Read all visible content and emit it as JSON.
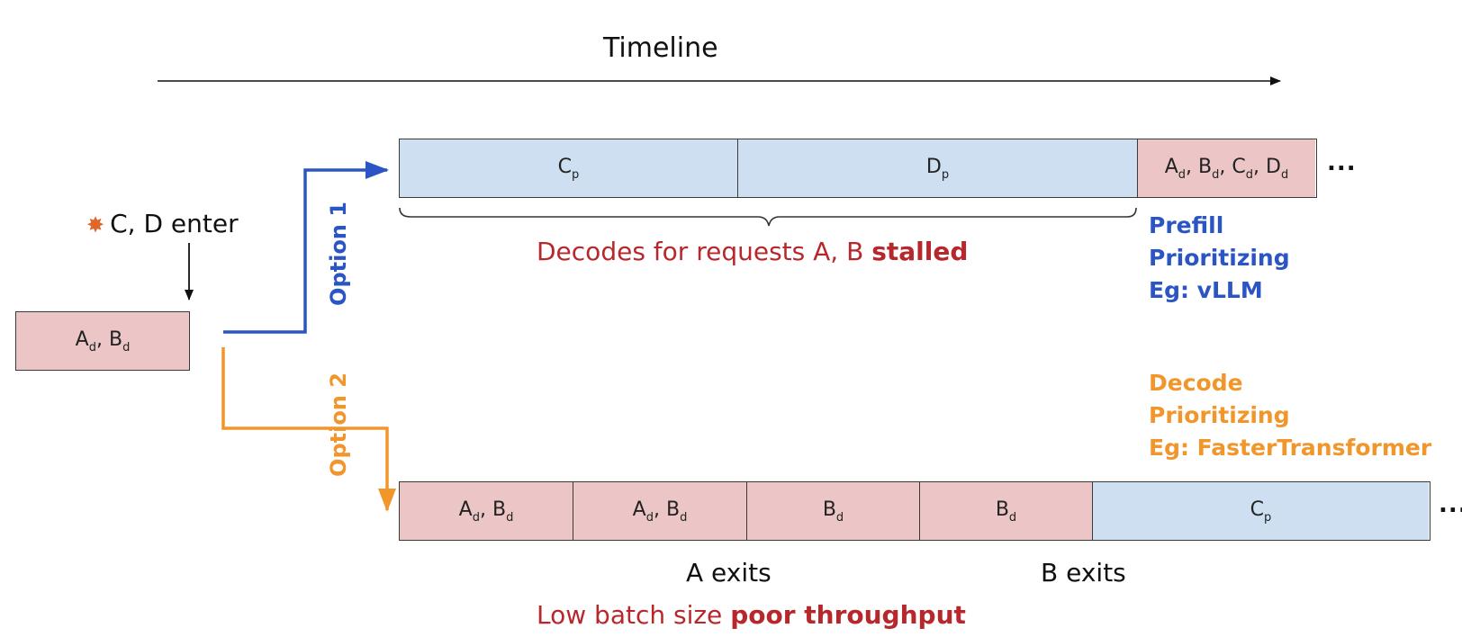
{
  "timeline": {
    "label": "Timeline"
  },
  "event": {
    "burst_icon": "collision-icon",
    "label": "C, D enter"
  },
  "start_box": {
    "main": [
      "A",
      "B"
    ],
    "subs": [
      "d",
      "d"
    ]
  },
  "option1": {
    "label": "Option 1",
    "color": "#2b54c4",
    "cells": [
      {
        "items": [
          [
            "C",
            "p"
          ]
        ]
      },
      {
        "items": [
          [
            "D",
            "p"
          ]
        ]
      },
      {
        "items": [
          [
            "A",
            "d"
          ],
          [
            "B",
            "d"
          ],
          [
            "C",
            "d"
          ],
          [
            "D",
            "d"
          ]
        ]
      }
    ],
    "stall_note": {
      "prefix": "Decodes for requests A, B ",
      "bold": "stalled"
    },
    "strategy": {
      "line1": "Prefill",
      "line2": "Prioritizing",
      "line3": "Eg: vLLM"
    },
    "ellipsis": "..."
  },
  "option2": {
    "label": "Option 2",
    "color": "#f1962b",
    "cells": [
      {
        "items": [
          [
            "A",
            "d"
          ],
          [
            "B",
            "d"
          ]
        ]
      },
      {
        "items": [
          [
            "A",
            "d"
          ],
          [
            "B",
            "d"
          ]
        ]
      },
      {
        "items": [
          [
            "B",
            "d"
          ]
        ]
      },
      {
        "items": [
          [
            "B",
            "d"
          ]
        ]
      },
      {
        "items": [
          [
            "C",
            "p"
          ]
        ]
      }
    ],
    "exits": {
      "a": "A exits",
      "b": "B exits"
    },
    "note": {
      "prefix": "Low batch size ",
      "bold": "poor throughput"
    },
    "strategy": {
      "line1": "Decode",
      "line2": "Prioritizing",
      "line3": "Eg: FasterTransformer"
    },
    "ellipsis": "..."
  },
  "colors": {
    "decode_fill": "#ecc6c7",
    "prefill_fill": "#cddff0",
    "highlight_red": "#b7282c"
  }
}
